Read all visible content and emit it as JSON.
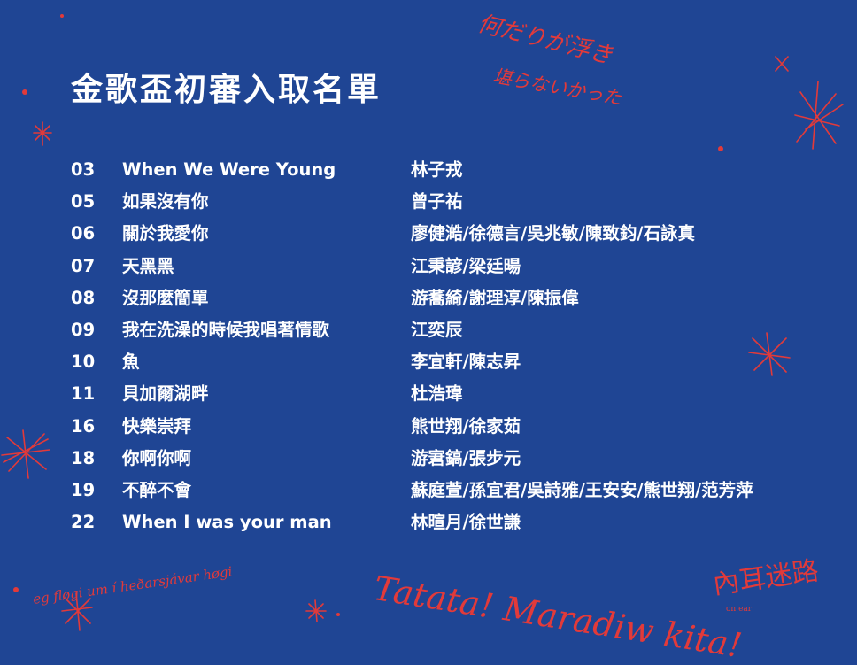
{
  "title": "金歌盃初審入取名單",
  "entries": [
    {
      "num": "03",
      "song": "When We Were Young",
      "singer": "林子戎"
    },
    {
      "num": "05",
      "song": "如果沒有你",
      "singer": "曾子祐"
    },
    {
      "num": "06",
      "song": "關於我愛你",
      "singer": "廖健澔/徐德言/吳兆敏/陳致鈞/石詠真"
    },
    {
      "num": "07",
      "song": "天黑黑",
      "singer": "江秉諺/梁廷暘"
    },
    {
      "num": "08",
      "song": "沒那麼簡單",
      "singer": "游蕎綺/謝理淳/陳振偉"
    },
    {
      "num": "09",
      "song": "我在洗澡的時候我唱著情歌",
      "singer": "江奕辰"
    },
    {
      "num": "10",
      "song": "魚",
      "singer": "李宜軒/陳志昇"
    },
    {
      "num": "11",
      "song": "貝加爾湖畔",
      "singer": "杜浩瑋"
    },
    {
      "num": "16",
      "song": "快樂崇拜",
      "singer": "熊世翔/徐家茹"
    },
    {
      "num": "18",
      "song": "你啊你啊",
      "singer": "游宭鎬/張步元"
    },
    {
      "num": "19",
      "song": "不醉不會",
      "singer": "蘇庭萱/孫宜君/吳詩雅/王安安/熊世翔/范芳萍"
    },
    {
      "num": "22",
      "song": "When I was your man",
      "singer": "林暄月/徐世謙"
    }
  ],
  "decorations": {
    "jp_line1": "何だりが浮き",
    "jp_line2": "堪らないかった",
    "faroese": "eg fløgi um í heðarsjávar høgi",
    "tatata": "Tatata! Maradiw kita!",
    "lost": "內耳迷路",
    "lost_small": "on ear"
  },
  "colors": {
    "background": "#1f4594",
    "text": "#ffffff",
    "accent": "#e23a3a"
  }
}
